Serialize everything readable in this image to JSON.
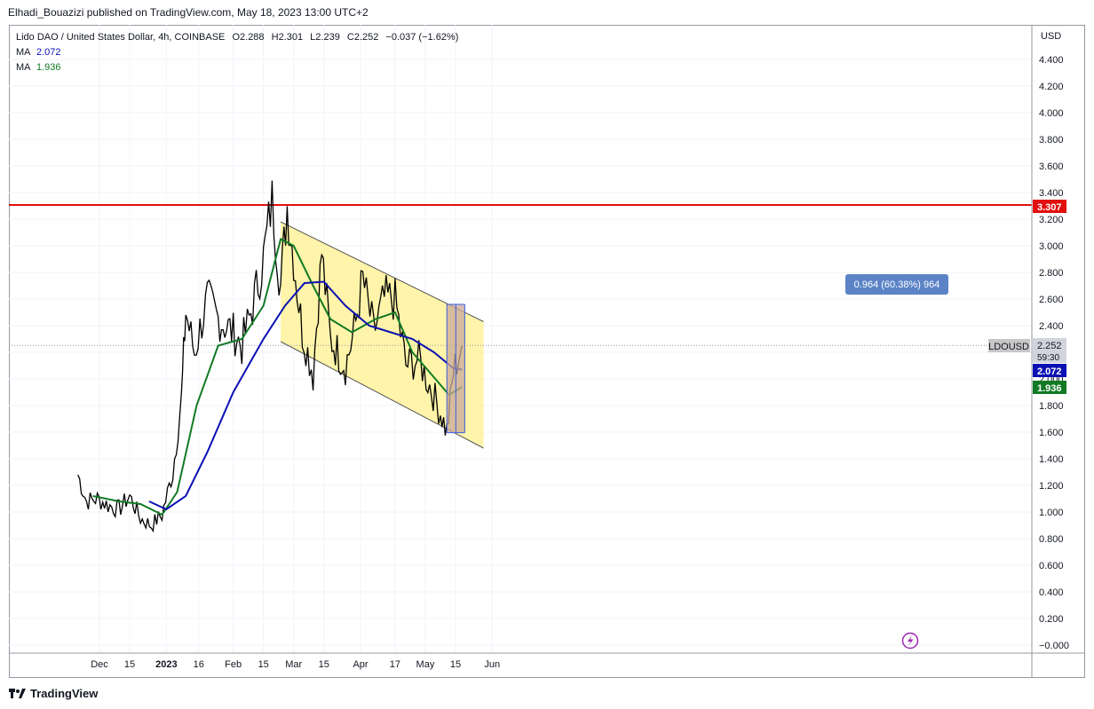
{
  "header": {
    "publish_line": "Elhadi_Bouazizi published on TradingView.com, May 18, 2023 13:00 UTC+2"
  },
  "legend": {
    "symbol": "Lido DAO / United States Dollar, 4h, COINBASE",
    "o_label": "O",
    "o_value": "2.288",
    "h_label": "H",
    "h_value": "2.301",
    "l_label": "L",
    "l_value": "2.239",
    "c_label": "C",
    "c_value": "2.252",
    "change": "−0.037 (−1.62%)",
    "ma1_label": "MA",
    "ma1_value": "2.072",
    "ma2_label": "MA",
    "ma2_value": "1.936"
  },
  "axis": {
    "currency": "USD",
    "price_ticks": [
      "4.400",
      "4.200",
      "4.000",
      "3.800",
      "3.600",
      "3.400",
      "3.200",
      "3.000",
      "2.800",
      "2.600",
      "2.400",
      "2.200",
      "2.000",
      "1.800",
      "1.600",
      "1.400",
      "1.200",
      "1.000",
      "0.800",
      "0.600",
      "0.400",
      "0.200",
      "−0.000"
    ],
    "time_ticks": [
      "Dec",
      "15",
      "2023",
      "16",
      "Feb",
      "15",
      "Mar",
      "15",
      "Apr",
      "17",
      "May",
      "15",
      "Jun"
    ]
  },
  "badges": {
    "symbol_label": "LDOUSD",
    "last_price": "2.252",
    "countdown": "59:30",
    "ma1": "2.072",
    "ma2": "1.936",
    "resistance": "3.307",
    "measure": "0.964 (60.38%) 964"
  },
  "colors": {
    "candle": "#000000",
    "ma1": "#0b10b4",
    "ma2": "#127a24",
    "resistance": "#e30e0e",
    "channel_fill": "#fff29a",
    "measure_fill": "#c8a898",
    "measure_line": "#3b5fe0",
    "badge_measure": "#5b83c6"
  },
  "footer": {
    "brand": "TradingView"
  },
  "chart_data": {
    "type": "line",
    "symbol": "LDOUSD",
    "interval": "4h",
    "ylim": [
      -0.04,
      4.48
    ],
    "resistance_level": 3.307,
    "last_price": 2.252,
    "price_approx": {
      "x": [
        "2022-11-21",
        "2022-11-25",
        "2022-11-30",
        "2022-12-05",
        "2022-12-10",
        "2022-12-15",
        "2022-12-20",
        "2022-12-25",
        "2022-12-30",
        "2023-01-04",
        "2023-01-08",
        "2023-01-10",
        "2023-01-14",
        "2023-01-20",
        "2023-01-25",
        "2023-02-01",
        "2023-02-05",
        "2023-02-10",
        "2023-02-15",
        "2023-02-19",
        "2023-02-23",
        "2023-02-26",
        "2023-03-01",
        "2023-03-05",
        "2023-03-10",
        "2023-03-14",
        "2023-03-18",
        "2023-03-25",
        "2023-03-29",
        "2023-04-02",
        "2023-04-07",
        "2023-04-12",
        "2023-04-17",
        "2023-04-22",
        "2023-04-28",
        "2023-05-03",
        "2023-05-08",
        "2023-05-11",
        "2023-05-14",
        "2023-05-18"
      ],
      "y": [
        1.28,
        1.08,
        1.1,
        1.05,
        1.02,
        1.12,
        0.95,
        0.9,
        0.98,
        1.3,
        1.85,
        2.5,
        2.2,
        2.6,
        2.45,
        2.35,
        2.25,
        2.55,
        2.9,
        3.35,
        2.7,
        3.3,
        2.9,
        2.35,
        2.05,
        2.95,
        2.3,
        2.1,
        2.35,
        2.75,
        2.35,
        2.6,
        2.6,
        2.1,
        2.15,
        1.95,
        1.75,
        1.6,
        2.05,
        2.25
      ]
    },
    "ma1": {
      "x": [
        "2022-12-24",
        "2023-01-01",
        "2023-01-10",
        "2023-01-20",
        "2023-02-01",
        "2023-02-15",
        "2023-02-25",
        "2023-03-06",
        "2023-03-15",
        "2023-03-25",
        "2023-04-05",
        "2023-04-15",
        "2023-04-25",
        "2023-05-05",
        "2023-05-14",
        "2023-05-18"
      ],
      "y": [
        1.08,
        1.02,
        1.12,
        1.45,
        1.9,
        2.3,
        2.55,
        2.72,
        2.73,
        2.55,
        2.4,
        2.35,
        2.3,
        2.2,
        2.08,
        2.07
      ]
    },
    "ma2": {
      "x": [
        "2022-11-28",
        "2022-12-10",
        "2022-12-20",
        "2022-12-30",
        "2023-01-06",
        "2023-01-15",
        "2023-01-25",
        "2023-02-05",
        "2023-02-15",
        "2023-02-23",
        "2023-03-01",
        "2023-03-10",
        "2023-03-18",
        "2023-03-28",
        "2023-04-08",
        "2023-04-17",
        "2023-04-25",
        "2023-05-03",
        "2023-05-12",
        "2023-05-18"
      ],
      "y": [
        1.12,
        1.08,
        1.06,
        0.98,
        1.15,
        1.8,
        2.25,
        2.3,
        2.55,
        3.05,
        3.0,
        2.7,
        2.45,
        2.35,
        2.45,
        2.5,
        2.2,
        2.05,
        1.88,
        1.94
      ]
    },
    "channel": {
      "upper": [
        [
          "2023-02-23",
          3.18
        ],
        [
          "2023-05-28",
          2.43
        ]
      ],
      "lower": [
        [
          "2023-02-23",
          2.28
        ],
        [
          "2023-05-28",
          1.48
        ]
      ]
    },
    "measure": {
      "x": [
        "2023-05-11",
        "2023-05-16"
      ],
      "y": [
        1.596,
        2.56
      ],
      "label": "0.964 (60.38%) 964"
    }
  }
}
